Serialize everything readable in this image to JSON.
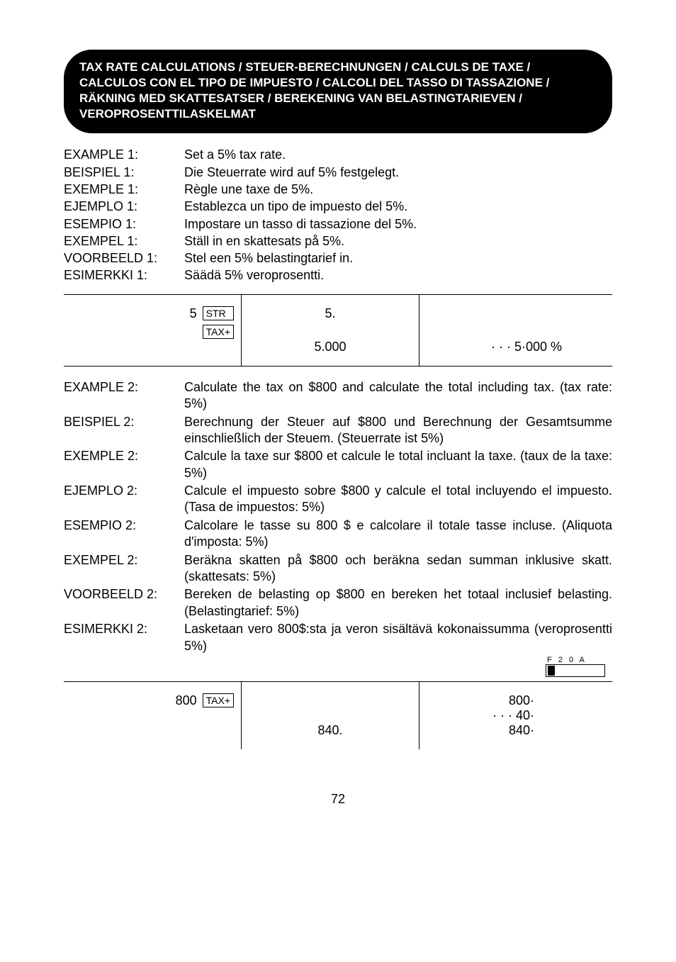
{
  "header": {
    "line1": "TAX RATE CALCULATIONS / STEUER-BERECHNUNGEN / CALCULS DE TAXE /",
    "line2": "CALCULOS CON EL TIPO DE IMPUESTO / CALCOLI DEL TASSO DI TASSAZIONE /",
    "line3": "RÄKNING MED SKATTESATSER / BEREKENING VAN BELASTINGTARIEVEN /",
    "line4": "VEROPROSENTTILASKELMAT"
  },
  "example1": [
    {
      "label": "EXAMPLE 1:",
      "text": "Set a 5% tax rate."
    },
    {
      "label": "BEISPIEL 1:",
      "text": "Die Steuerrate wird auf 5% festgelegt."
    },
    {
      "label": "EXEMPLE 1:",
      "text": "Règle une taxe de 5%."
    },
    {
      "label": "EJEMPLO 1:",
      "text": "Establezca un tipo de impuesto del 5%."
    },
    {
      "label": "ESEMPIO 1:",
      "text": "Impostare un tasso di tassazione del 5%."
    },
    {
      "label": "EXEMPEL 1:",
      "text": "Ställ in en skattesats på 5%."
    },
    {
      "label": "VOORBEELD 1:",
      "text": "Stel een 5% belastingtarief in."
    },
    {
      "label": "ESIMERKKI 1:",
      "text": "Säädä  5% veroprosentti."
    }
  ],
  "calc1": {
    "input_num": "5",
    "key1": "STR",
    "key2": "TAX+",
    "disp1": "5.",
    "disp2": "5.000",
    "print1": "· · ·  5·000 %"
  },
  "example2": [
    {
      "label": "EXAMPLE 2:",
      "text": "Calculate the tax on $800 and calculate the total including tax. (tax rate: 5%)"
    },
    {
      "label": "BEISPIEL 2:",
      "text": "Berechnung der Steuer auf $800 und Berechnung der Gesamtsumme einschließlich der Steuem. (Steuerrate ist 5%)"
    },
    {
      "label": "EXEMPLE 2:",
      "text": "Calcule la taxe sur $800 et calcule le total incluant la taxe. (taux de la taxe: 5%)"
    },
    {
      "label": "EJEMPLO 2:",
      "text": "Calcule el impuesto sobre $800 y calcule el total incluyendo el impuesto. (Tasa de impuestos: 5%)"
    },
    {
      "label": "ESEMPIO 2:",
      "text": "Calcolare le tasse su 800 $ e calcolare il totale tasse incluse. (Aliquota d'imposta: 5%)"
    },
    {
      "label": "EXEMPEL 2:",
      "text": "Beräkna skatten på $800 och beräkna sedan summan inklusive skatt. (skattesats: 5%)"
    },
    {
      "label": "VOORBEELD 2:",
      "text": "Bereken de belasting op $800 en bereken het totaal inclusief belasting. (Belastingtarief: 5%)"
    },
    {
      "label": "ESIMERKKI 2:",
      "text": "Lasketaan vero 800$:sta ja veron sisältävä kokonaissumma (veroprosentti 5%)"
    }
  ],
  "switch_labels": "F 2 0 A",
  "calc2": {
    "input_num": "800",
    "key1": "TAX+",
    "disp1": "840.",
    "print1": "800·",
    "print2": "· · ·   40·",
    "print3": "840·"
  },
  "pagenum": "72"
}
